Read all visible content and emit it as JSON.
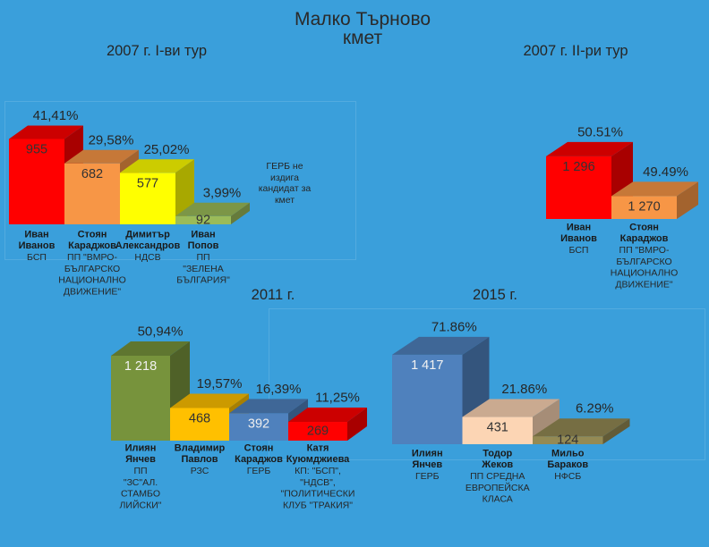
{
  "title": "Малко Търново",
  "subtitle": "кмет",
  "chart_data": [
    {
      "type": "bar",
      "title": "2007 г. I-ви тур",
      "values": [
        955,
        682,
        577,
        92
      ],
      "value_labels": [
        "955",
        "682",
        "577",
        "92"
      ],
      "percent_labels": [
        "41,41%",
        "29,58%",
        "25,02%",
        "3,99%"
      ],
      "categories": [
        {
          "name": [
            "Иван",
            "Иванов"
          ],
          "party": [
            "БСП"
          ]
        },
        {
          "name": [
            "Стоян",
            "Караджов"
          ],
          "party": [
            "ПП \"ВМРО-",
            "БЪЛГАРСКО",
            "НАЦИОНАЛНО",
            "ДВИЖЕНИЕ\""
          ]
        },
        {
          "name": [
            "Димитър",
            "Александров"
          ],
          "party": [
            "НДСВ"
          ]
        },
        {
          "name": [
            "Иван",
            "Попов"
          ],
          "party": [
            "ПП",
            "\"ЗЕЛЕНА",
            "БЪЛГАРИЯ\""
          ]
        }
      ],
      "note": [
        "ГЕРБ не",
        "издига",
        "кандидат за",
        "кмет"
      ],
      "colors": [
        "#ff0000",
        "#f79646",
        "#ffff00",
        "#9bbb59"
      ],
      "label_colors": [
        "#333333",
        "#333333",
        "#333333",
        "#333333"
      ],
      "ylim": [
        0,
        1000
      ],
      "grid": false
    },
    {
      "type": "bar",
      "title": "2007 г. II-ри тур",
      "values": [
        1296,
        1270
      ],
      "value_labels": [
        "1 296",
        "1 270"
      ],
      "percent_labels": [
        "50.51%",
        "49.49%"
      ],
      "categories": [
        {
          "name": [
            "Иван",
            "Иванов"
          ],
          "party": [
            "БСП"
          ]
        },
        {
          "name": [
            "Стоян",
            "Караджов"
          ],
          "party": [
            "ПП \"ВМРО-",
            "БЪЛГАРСКО",
            "НАЦИОНАЛНО",
            "ДВИЖЕНИЕ\""
          ]
        }
      ],
      "colors": [
        "#ff0000",
        "#f79646"
      ],
      "label_colors": [
        "#333333",
        "#333333"
      ],
      "ylim": [
        1255,
        1300
      ],
      "grid": false
    },
    {
      "type": "bar",
      "title": "2011 г.",
      "values": [
        1218,
        468,
        392,
        269
      ],
      "value_labels": [
        "1 218",
        "468",
        "392",
        "269"
      ],
      "percent_labels": [
        "50,94%",
        "19,57%",
        "16,39%",
        "11,25%"
      ],
      "categories": [
        {
          "name": [
            "Илиян",
            "Янчев"
          ],
          "party": [
            "ПП",
            "\"ЗС\"АЛ.",
            "СТАМБО",
            "ЛИЙСКИ\""
          ]
        },
        {
          "name": [
            "Владимир",
            "Павлов"
          ],
          "party": [
            "РЗС"
          ]
        },
        {
          "name": [
            "Стоян",
            "Караджов"
          ],
          "party": [
            "ГЕРБ"
          ]
        },
        {
          "name": [
            "Катя",
            "Куюмджиева"
          ],
          "party": [
            "КП: \"БСП\",",
            "\"НДСВ\",",
            "\"ПОЛИТИЧЕСКИ",
            "КЛУБ \"ТРАКИЯ\""
          ]
        }
      ],
      "colors": [
        "#77933c",
        "#ffc000",
        "#4f81bd",
        "#ff0000"
      ],
      "label_colors": [
        "#f2f2f2",
        "#333333",
        "#eeeeee",
        "#333333"
      ],
      "ylim": [
        0,
        1250
      ],
      "grid": false
    },
    {
      "type": "bar",
      "title": "2015 г.",
      "values": [
        1417,
        431,
        124
      ],
      "value_labels": [
        "1 417",
        "431",
        "124"
      ],
      "percent_labels": [
        "71.86%",
        "21.86%",
        "6.29%"
      ],
      "categories": [
        {
          "name": [
            "Илиян",
            "Янчев"
          ],
          "party": [
            "ГЕРБ"
          ]
        },
        {
          "name": [
            "Тодор",
            "Жеков"
          ],
          "party": [
            "ПП СРЕДНА",
            "ЕВРОПЕЙСКА",
            "КЛАСА"
          ]
        },
        {
          "name": [
            "Мильо",
            "Бараков"
          ],
          "party": [
            "НФСБ"
          ]
        }
      ],
      "colors": [
        "#4f81bd",
        "#fcd5b4",
        "#948a54"
      ],
      "label_colors": [
        "#f2f2f2",
        "#333333",
        "#333333"
      ],
      "ylim": [
        0,
        1500
      ],
      "grid": false
    }
  ]
}
